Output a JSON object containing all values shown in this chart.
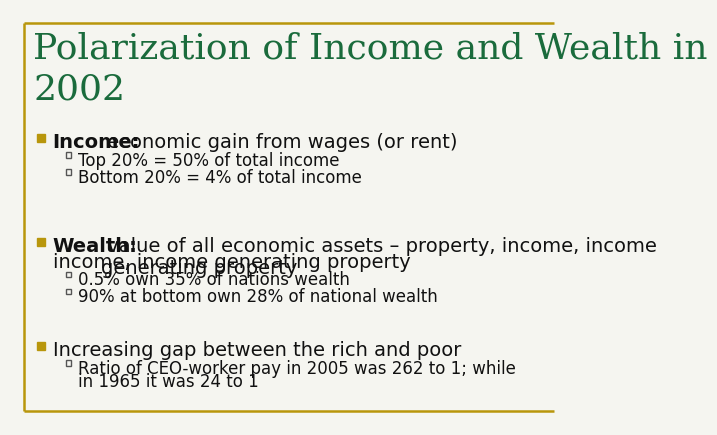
{
  "title": "Polarization of Income and Wealth in\n2002",
  "title_color": "#1a6b3c",
  "background_color": "#f5f5f0",
  "border_color": "#b8960c",
  "bullet_color": "#b8960c",
  "items": [
    {
      "bold": "Income:",
      "text": " economic gain from wages (or rent)",
      "subs": [
        "Top 20% = 50% of total income",
        "Bottom 20% = 4% of total income"
      ]
    },
    {
      "bold": "Wealth:",
      "text": " value of all economic assets – property, income, income generating property",
      "subs": [
        "0.5% own 35% of nations wealth",
        "90% at bottom own 28% of national wealth"
      ]
    },
    {
      "bold": "",
      "text": "Increasing gap between the rich and poor",
      "subs": [
        "Ratio of CEO-worker pay in 2005 was 262 to 1; while in 1965 it was 24 to 1"
      ]
    }
  ]
}
